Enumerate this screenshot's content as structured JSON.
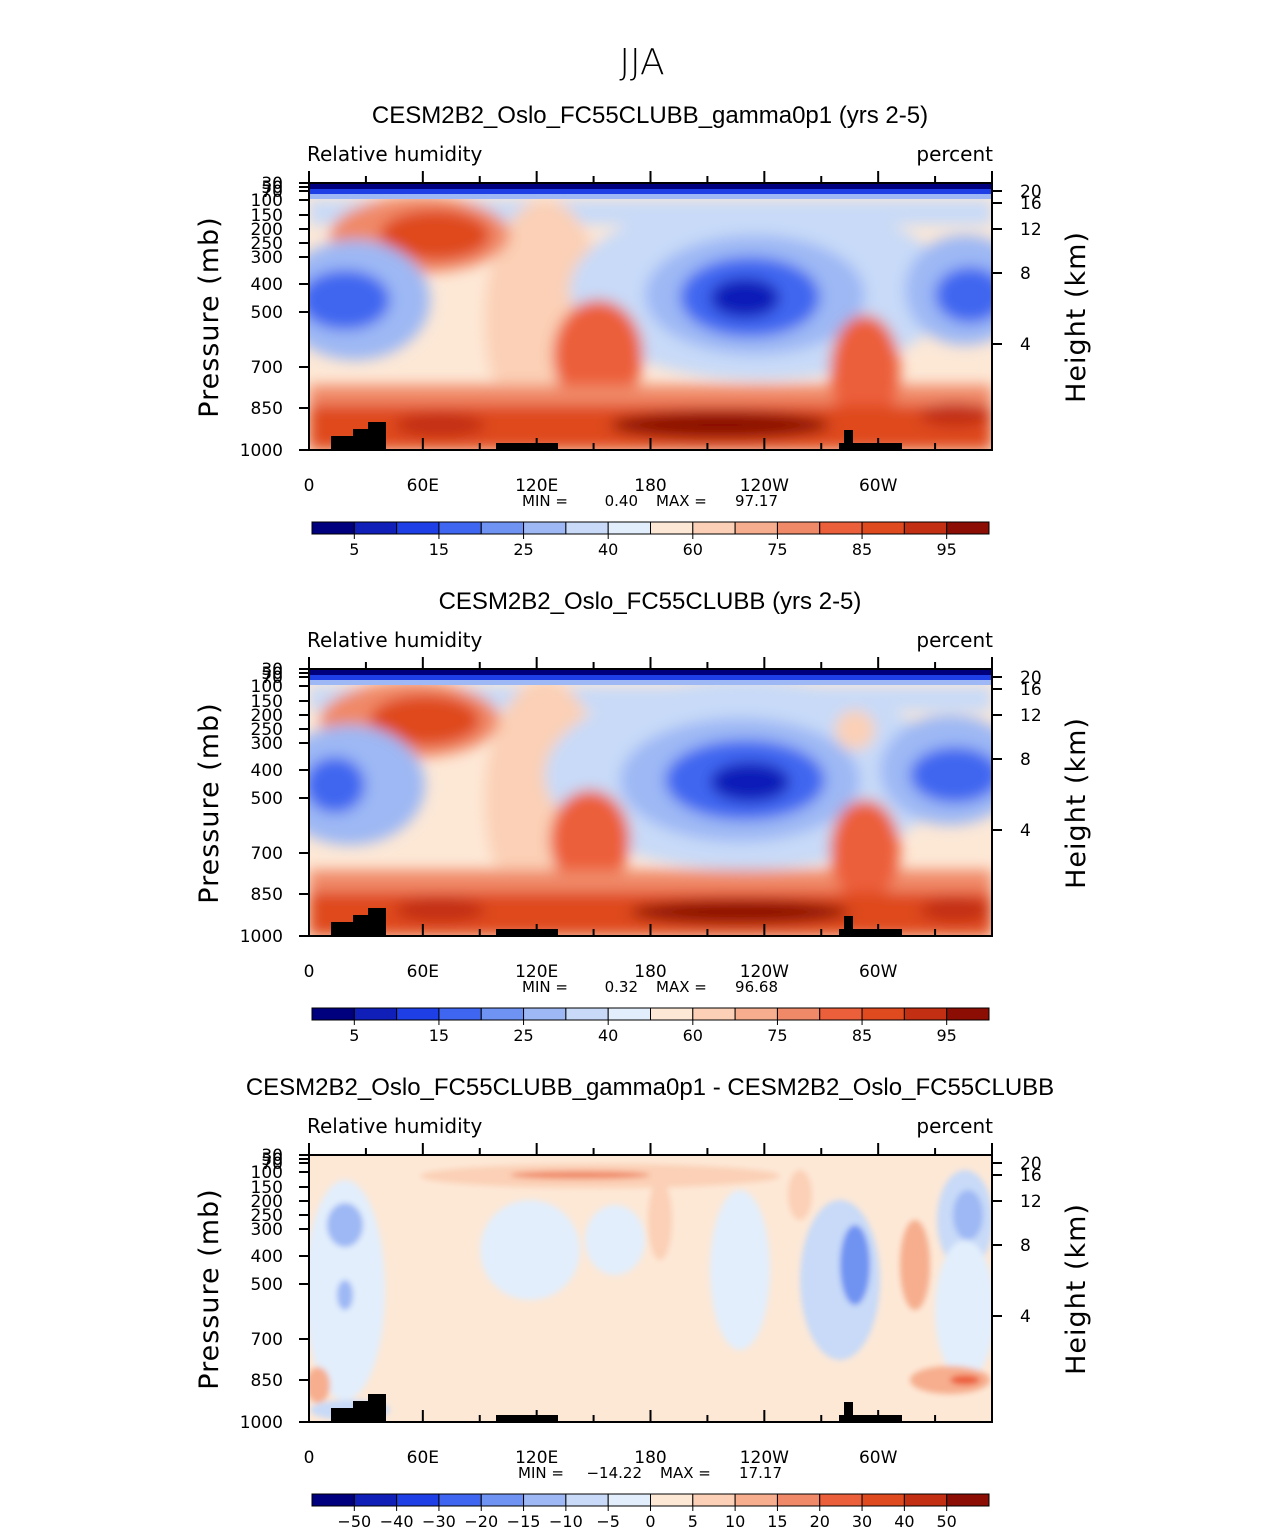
{
  "figure": {
    "title": "JJA",
    "palette": [
      "#00007f",
      "#0f1fb8",
      "#1e3fe6",
      "#3f66f0",
      "#6f93f2",
      "#9db8f4",
      "#c8daf8",
      "#e2eefc",
      "#fde8d6",
      "#fbd0b6",
      "#f6ae8e",
      "#f08968",
      "#ec5f3b",
      "#df4a1f",
      "#c22f12",
      "#8b0d04"
    ]
  },
  "chart_data": [
    {
      "type": "heatmap",
      "title": "CESM2B2_Oslo_FC55CLUBB_gamma0p1 (yrs 2-5)",
      "left_label": "Relative humidity",
      "right_label": "percent",
      "ylabel": "Pressure (mb)",
      "ylabel_right": "Height (km)",
      "x_ticks": [
        "0",
        "60E",
        "120E",
        "180",
        "120W",
        "60W"
      ],
      "y_ticks": [
        "30",
        "50",
        "70",
        "100",
        "150",
        "200",
        "250",
        "300",
        "400",
        "500",
        "700",
        "850",
        "1000"
      ],
      "y_ticks_right": [
        "20",
        "16",
        "12",
        "8",
        "4"
      ],
      "min_label": "MIN =",
      "min_value": "0.40",
      "max_label": "MAX =",
      "max_value": "97.17",
      "colorbar_ticks": [
        "5",
        "15",
        "25",
        "40",
        "60",
        "75",
        "85",
        "95"
      ]
    },
    {
      "type": "heatmap",
      "title": "CESM2B2_Oslo_FC55CLUBB (yrs 2-5)",
      "left_label": "Relative humidity",
      "right_label": "percent",
      "ylabel": "Pressure (mb)",
      "ylabel_right": "Height (km)",
      "x_ticks": [
        "0",
        "60E",
        "120E",
        "180",
        "120W",
        "60W"
      ],
      "y_ticks": [
        "30",
        "50",
        "70",
        "100",
        "150",
        "200",
        "250",
        "300",
        "400",
        "500",
        "700",
        "850",
        "1000"
      ],
      "y_ticks_right": [
        "20",
        "16",
        "12",
        "8",
        "4"
      ],
      "min_label": "MIN =",
      "min_value": "0.32",
      "max_label": "MAX =",
      "max_value": "96.68",
      "colorbar_ticks": [
        "5",
        "15",
        "25",
        "40",
        "60",
        "75",
        "85",
        "95"
      ]
    },
    {
      "type": "heatmap",
      "title": "CESM2B2_Oslo_FC55CLUBB_gamma0p1 - CESM2B2_Oslo_FC55CLUBB",
      "left_label": "Relative humidity",
      "right_label": "percent",
      "ylabel": "Pressure (mb)",
      "ylabel_right": "Height (km)",
      "x_ticks": [
        "0",
        "60E",
        "120E",
        "180",
        "120W",
        "60W"
      ],
      "y_ticks": [
        "30",
        "50",
        "70",
        "100",
        "150",
        "200",
        "250",
        "300",
        "400",
        "500",
        "700",
        "850",
        "1000"
      ],
      "y_ticks_right": [
        "20",
        "16",
        "12",
        "8",
        "4"
      ],
      "min_label": "MIN =",
      "min_value": "−14.22",
      "max_label": "MAX =",
      "max_value": "17.17",
      "colorbar_ticks": [
        "−50",
        "−40",
        "−30",
        "−20",
        "−15",
        "−10",
        "−5",
        "0",
        "5",
        "10",
        "15",
        "20",
        "30",
        "40",
        "50"
      ]
    }
  ]
}
